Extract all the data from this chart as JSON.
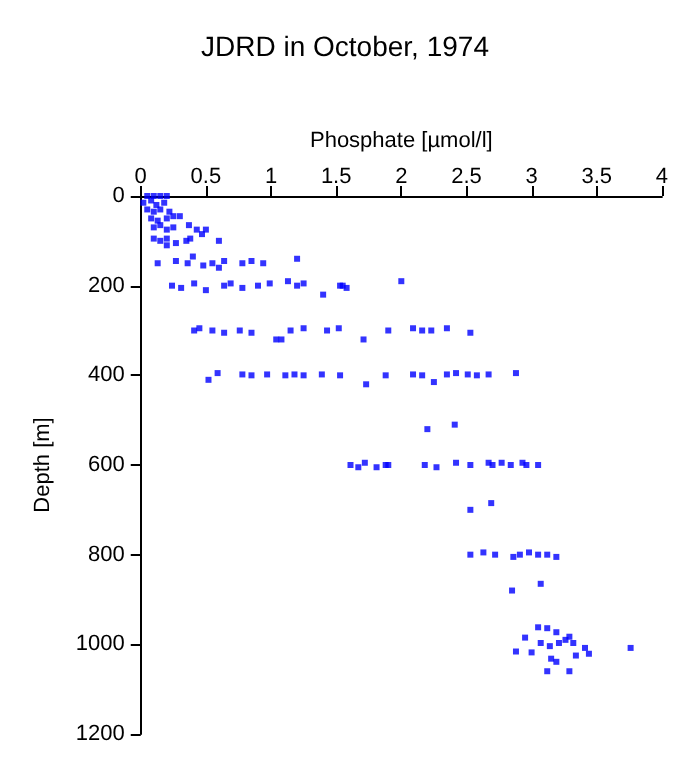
{
  "chart_data": {
    "type": "scatter",
    "title": "JDRD in October, 1974",
    "xlabel": "Phosphate [µmol/l]",
    "ylabel": "Depth [m]",
    "marker": "square",
    "grid": false,
    "xlim": [
      0,
      4
    ],
    "xticks": [
      0,
      0.5,
      1,
      1.5,
      2,
      2.5,
      3,
      3.5,
      4
    ],
    "ylim": [
      1200,
      0
    ],
    "yticks": [
      0,
      200,
      400,
      600,
      800,
      1000,
      1200
    ],
    "series": [
      {
        "color": "#0000ff",
        "x": [
          0.05,
          0.1,
          0.15,
          0.2,
          0.02,
          0.08,
          0.12,
          0.18,
          0.05,
          0.1,
          0.15,
          0.22,
          0.08,
          0.13,
          0.2,
          0.25,
          0.3,
          0.1,
          0.15,
          0.2,
          0.25,
          0.1,
          0.15,
          0.2,
          0.27,
          0.2,
          0.37,
          0.43,
          0.5,
          0.47,
          0.6,
          0.38,
          0.35,
          0.13,
          0.27,
          0.36,
          0.48,
          0.55,
          0.6,
          0.64,
          0.78,
          0.85,
          0.94,
          1.2,
          0.4,
          0.24,
          0.31,
          0.41,
          0.5,
          0.64,
          0.69,
          0.78,
          0.9,
          0.99,
          1.13,
          1.2,
          1.25,
          1.53,
          1.58,
          1.4,
          2.0,
          1.55,
          0.41,
          0.45,
          0.55,
          0.64,
          0.76,
          0.85,
          1.04,
          1.08,
          1.15,
          1.25,
          1.43,
          1.52,
          1.71,
          1.9,
          2.09,
          2.16,
          2.23,
          2.35,
          2.53,
          0.52,
          0.59,
          0.78,
          0.85,
          0.97,
          1.11,
          1.18,
          1.25,
          1.39,
          1.53,
          1.73,
          1.88,
          2.09,
          2.16,
          2.25,
          2.35,
          2.42,
          2.51,
          2.58,
          2.67,
          2.88,
          2.2,
          2.41,
          1.61,
          1.67,
          1.72,
          1.81,
          1.88,
          1.9,
          2.18,
          2.27,
          2.42,
          2.53,
          2.67,
          2.7,
          2.77,
          2.84,
          2.93,
          2.96,
          3.05,
          2.53,
          2.69,
          2.53,
          2.63,
          2.72,
          2.86,
          2.91,
          2.98,
          3.05,
          3.12,
          3.19,
          2.85,
          3.07,
          2.88,
          2.95,
          3.05,
          3.12,
          3.19,
          3.26,
          3.29,
          3.21,
          3.14,
          3.07,
          3.0,
          3.15,
          3.19,
          3.12,
          3.29,
          3.34,
          3.41,
          3.44,
          3.76,
          3.32
        ],
        "values": [
          0,
          0,
          0,
          0,
          15,
          10,
          20,
          15,
          30,
          35,
          30,
          35,
          50,
          55,
          50,
          45,
          45,
          70,
          65,
          75,
          70,
          95,
          100,
          95,
          105,
          110,
          65,
          75,
          75,
          85,
          100,
          95,
          100,
          150,
          145,
          150,
          155,
          150,
          160,
          145,
          150,
          145,
          150,
          140,
          135,
          200,
          205,
          195,
          210,
          200,
          195,
          205,
          200,
          195,
          190,
          200,
          195,
          200,
          205,
          220,
          190,
          200,
          300,
          295,
          300,
          305,
          300,
          305,
          320,
          320,
          300,
          295,
          300,
          295,
          320,
          300,
          295,
          300,
          300,
          295,
          305,
          410,
          395,
          398,
          400,
          398,
          400,
          398,
          400,
          398,
          400,
          420,
          400,
          398,
          400,
          415,
          398,
          395,
          398,
          400,
          398,
          395,
          520,
          510,
          600,
          605,
          595,
          605,
          600,
          600,
          600,
          605,
          595,
          600,
          595,
          600,
          595,
          600,
          595,
          600,
          600,
          700,
          685,
          800,
          795,
          800,
          805,
          800,
          795,
          800,
          800,
          805,
          880,
          865,
          1016,
          985,
          962,
          964,
          973,
          990,
          983,
          997,
          1004,
          997,
          1018,
          1032,
          1039,
          1060,
          1060,
          1025,
          1008,
          1021,
          1008,
          997
        ]
      }
    ]
  }
}
